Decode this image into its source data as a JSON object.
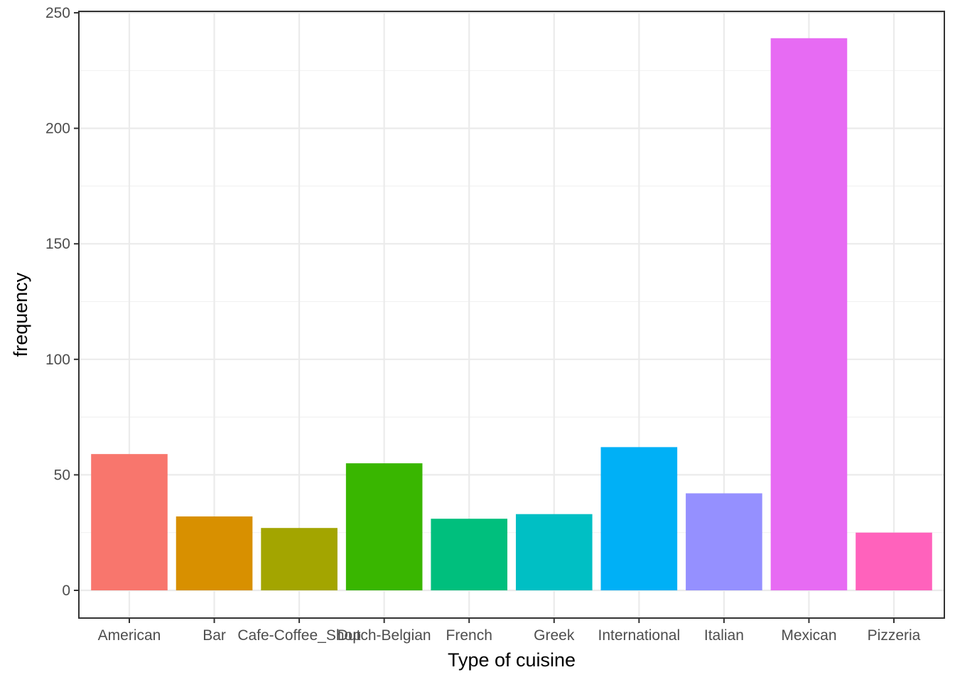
{
  "chart_data": {
    "type": "bar",
    "title": "",
    "xlabel": "Type of cuisine",
    "ylabel": "frequency",
    "categories": [
      "American",
      "Bar",
      "Cafe-Coffee_Shop",
      "Dutch-Belgian",
      "French",
      "Greek",
      "International",
      "Italian",
      "Mexican",
      "Pizzeria"
    ],
    "values": [
      59,
      32,
      27,
      55,
      31,
      33,
      62,
      42,
      239,
      25
    ],
    "colors": [
      "#F8766D",
      "#D89000",
      "#A3A500",
      "#39B600",
      "#00BF7D",
      "#00BFC4",
      "#00B0F6",
      "#9590FF",
      "#E76BF3",
      "#FF62BC"
    ],
    "ylim": [
      0,
      250
    ],
    "yticks": [
      0,
      50,
      100,
      150,
      200,
      250
    ],
    "grid": true,
    "legend": "none"
  }
}
